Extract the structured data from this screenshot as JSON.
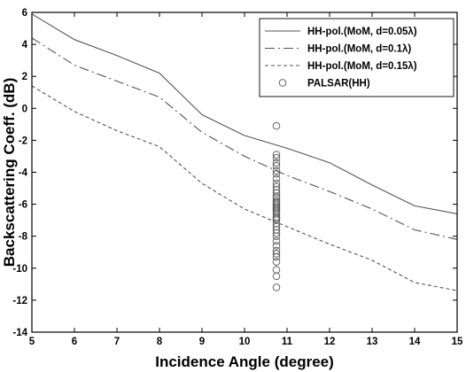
{
  "chart_data": {
    "type": "line",
    "title": "",
    "xlabel": "Incidence Angle (degree)",
    "ylabel": "Backscattering Coeff. (dB)",
    "xlim": [
      5,
      15
    ],
    "ylim": [
      -14,
      6
    ],
    "xticks": [
      5,
      6,
      7,
      8,
      9,
      10,
      11,
      12,
      13,
      14,
      15
    ],
    "yticks": [
      -14,
      -12,
      -10,
      -8,
      -6,
      -4,
      -2,
      0,
      2,
      4,
      6
    ],
    "grid": false,
    "legend_position": "top-right",
    "series": [
      {
        "name": "HH-pol.(MoM, d=0.05λ)",
        "style": "solid",
        "x": [
          5,
          6,
          7,
          8,
          9,
          10,
          11,
          12,
          13,
          14,
          15
        ],
        "y": [
          5.9,
          4.3,
          3.3,
          2.2,
          -0.4,
          -1.7,
          -2.5,
          -3.4,
          -4.8,
          -6.1,
          -6.6
        ]
      },
      {
        "name": "HH-pol.(MoM, d=0.1λ)",
        "style": "dashdot",
        "x": [
          5,
          6,
          7,
          8,
          9,
          10,
          11,
          12,
          13,
          14,
          15
        ],
        "y": [
          4.4,
          2.7,
          1.7,
          0.7,
          -1.5,
          -3.0,
          -4.2,
          -5.2,
          -6.3,
          -7.6,
          -8.2
        ]
      },
      {
        "name": "HH-pol.(MoM, d=0.15λ)",
        "style": "dashed",
        "x": [
          5,
          6,
          7,
          8,
          9,
          10,
          11,
          12,
          13,
          14,
          15
        ],
        "y": [
          1.4,
          -0.2,
          -1.4,
          -2.4,
          -4.7,
          -6.3,
          -7.4,
          -8.5,
          -9.5,
          -10.9,
          -11.4
        ]
      },
      {
        "name": "PALSAR(HH)",
        "style": "markers",
        "x": [
          10.75,
          10.75,
          10.75,
          10.75,
          10.75,
          10.75,
          10.75,
          10.75,
          10.75,
          10.75,
          10.75,
          10.75,
          10.75,
          10.75,
          10.75,
          10.75,
          10.75,
          10.75,
          10.75,
          10.75,
          10.75,
          10.75,
          10.75,
          10.75,
          10.75,
          10.75,
          10.75,
          10.75,
          10.75,
          10.75,
          10.75,
          10.75,
          10.75,
          10.75,
          10.75,
          10.75,
          10.75,
          10.75,
          10.75,
          10.75
        ],
        "y": [
          -1.1,
          -2.9,
          -3.1,
          -3.4,
          -3.6,
          -3.9,
          -4.1,
          -4.4,
          -4.7,
          -4.9,
          -5.1,
          -5.3,
          -5.5,
          -5.6,
          -5.8,
          -5.9,
          -6.0,
          -6.1,
          -6.2,
          -6.3,
          -6.4,
          -6.5,
          -6.6,
          -6.8,
          -6.9,
          -7.0,
          -7.2,
          -7.4,
          -7.6,
          -7.8,
          -8.0,
          -8.3,
          -8.6,
          -8.9,
          -9.1,
          -9.3,
          -9.6,
          -10.1,
          -10.5,
          -11.2
        ]
      }
    ]
  }
}
